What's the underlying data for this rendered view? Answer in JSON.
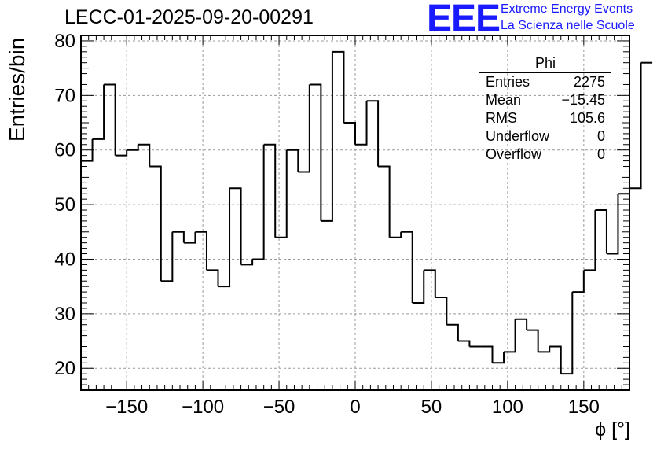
{
  "title": "LECC-01-2025-09-20-00291",
  "logo": {
    "mark": "EEE",
    "line1": "Extreme Energy Events",
    "line2": "La Scienza nelle Scuole"
  },
  "stats": {
    "title": "Phi",
    "rows": [
      {
        "label": "Entries",
        "value": "2275"
      },
      {
        "label": "Mean",
        "value": "−15.45"
      },
      {
        "label": "RMS",
        "value": "105.6"
      },
      {
        "label": "Underflow",
        "value": "0"
      },
      {
        "label": "Overflow",
        "value": "0"
      }
    ]
  },
  "chart_data": {
    "type": "bar",
    "style": "step-histogram",
    "title": "LECC-01-2025-09-20-00291",
    "xlabel": "ϕ [°]",
    "ylabel": "Entries/bin",
    "xlim": [
      -180,
      180
    ],
    "ylim": [
      16,
      81
    ],
    "bin_width": 7.5,
    "bin_edges_start": -180,
    "values": [
      58,
      62,
      72,
      59,
      60,
      61,
      57,
      36,
      45,
      43,
      45,
      38,
      35,
      53,
      39,
      40,
      61,
      44,
      60,
      56,
      72,
      47,
      78,
      65,
      61,
      69,
      57,
      44,
      45,
      32,
      38,
      33,
      28,
      25,
      24,
      24,
      21,
      23,
      29,
      27,
      23,
      24,
      19,
      34,
      38,
      49,
      41,
      52,
      53,
      76
    ],
    "x_ticks": [
      -150,
      -100,
      -50,
      0,
      50,
      100,
      150
    ],
    "x_tick_labels": [
      "−150",
      "−100",
      "−50",
      "0",
      "50",
      "100",
      "150"
    ],
    "y_ticks": [
      20,
      30,
      40,
      50,
      60,
      70,
      80
    ],
    "y_tick_labels": [
      "20",
      "30",
      "40",
      "50",
      "60",
      "70",
      "80"
    ],
    "grid": true,
    "line_color": "#000000",
    "grid_color": "#999999"
  }
}
